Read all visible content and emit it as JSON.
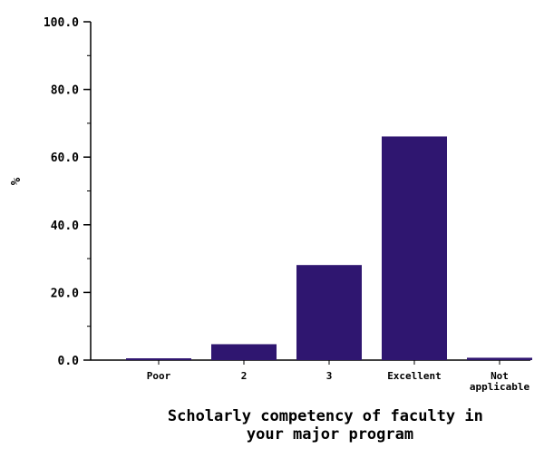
{
  "chart_data": {
    "type": "bar",
    "categories": [
      "Poor",
      "2",
      "3",
      "Excellent",
      "Not applicable"
    ],
    "category_label_lines": [
      [
        "Poor"
      ],
      [
        "2"
      ],
      [
        "3"
      ],
      [
        "Excellent"
      ],
      [
        "Not",
        "applicable"
      ]
    ],
    "values": [
      0.4,
      4.7,
      28.1,
      66.1,
      0.7
    ],
    "xlabel_lines": [
      "Scholarly competency of faculty in",
      "your major program"
    ],
    "ylabel": "%",
    "ylim": [
      0,
      100
    ],
    "yticks": [
      0,
      20,
      40,
      60,
      80,
      100
    ],
    "ytick_labels": [
      "0.0",
      "20.0",
      "40.0",
      "60.0",
      "80.0",
      "100.0"
    ],
    "minor_tick_step": 10,
    "bar_color": "#2f1670",
    "grid": false
  }
}
